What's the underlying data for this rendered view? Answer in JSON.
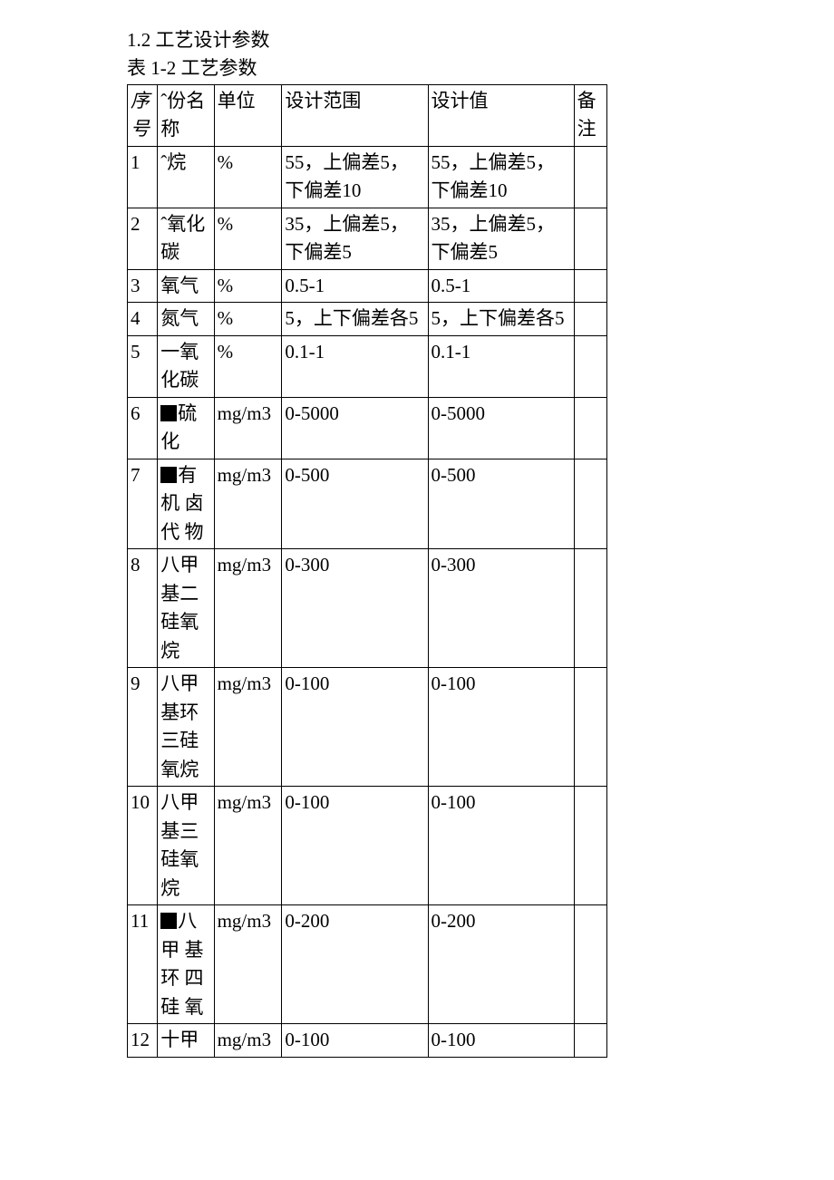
{
  "section_heading": "1.2 工艺设计参数",
  "table_caption": "表  1-2 工艺参数",
  "columns": {
    "seq": "序号",
    "name": "ˆ份名称",
    "unit": "单位",
    "range": "设计范围",
    "value": "设计值",
    "note": "备注"
  },
  "rows": [
    {
      "seq": "1",
      "name": "ˆ烷",
      "unit": "%",
      "range": "55，上偏差5，下偏差10",
      "value": "55，上偏差5，下偏差10",
      "note": ""
    },
    {
      "seq": "2",
      "name": "ˆ氧化碳",
      "unit": "%",
      "range": "35，上偏差5，下偏差5",
      "value": "35，上偏差5，下偏差5",
      "note": ""
    },
    {
      "seq": "3",
      "name": "氧气",
      "unit": "%",
      "range": "0.5-1",
      "value": "0.5-1",
      "note": ""
    },
    {
      "seq": "4",
      "name": "氮气",
      "unit": "%",
      "range": "5，上下偏差各5",
      "value": "5，上下偏差各5",
      "note": ""
    },
    {
      "seq": "5",
      "name": "一氧化碳",
      "unit": "%",
      "range": "0.1-1",
      "value": "0.1-1",
      "note": ""
    },
    {
      "seq": "6",
      "name": "■硫化",
      "unit": "mg/m3",
      "range": "0-5000",
      "value": "0-5000",
      "note": ""
    },
    {
      "seq": "7",
      "name": "■有机 卤代 物",
      "unit": "mg/m3",
      "range": "0-500",
      "value": "0-500",
      "note": ""
    },
    {
      "seq": "8",
      "name": "八甲基二硅氧烷",
      "unit": "mg/m3",
      "range": "0-300",
      "value": "0-300",
      "note": ""
    },
    {
      "seq": "9",
      "name": "八甲基环三硅氧烷",
      "unit": "mg/m3",
      "range": "0-100",
      "value": "0-100",
      "note": ""
    },
    {
      "seq": "10",
      "name": "八甲基三硅氧烷",
      "unit": "mg/m3",
      "range": "0-100",
      "value": "0-100",
      "note": ""
    },
    {
      "seq": "11",
      "name": "■八甲 基环 四硅 氧",
      "unit": "mg/m3",
      "range": "0-200",
      "value": "0-200",
      "note": ""
    },
    {
      "seq": "12",
      "name": "十甲",
      "unit": "mg/m3",
      "range": "0-100",
      "value": "0-100",
      "note": ""
    }
  ]
}
